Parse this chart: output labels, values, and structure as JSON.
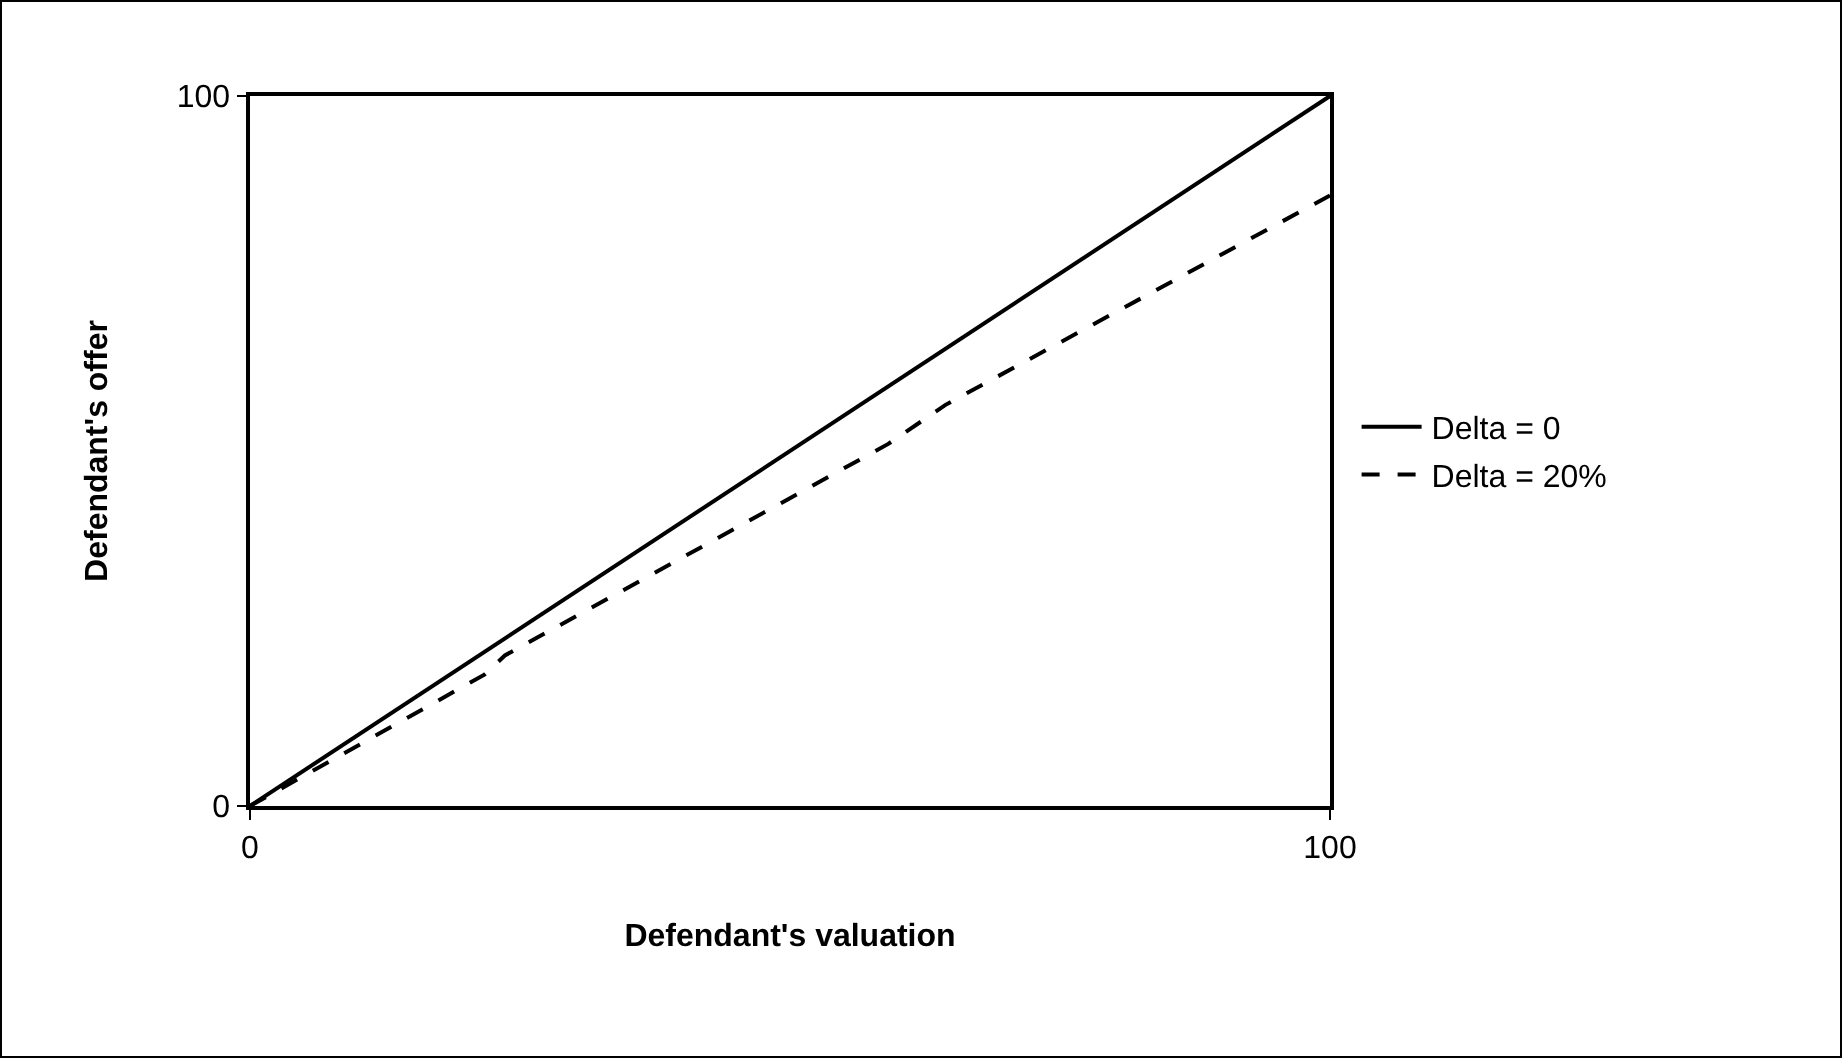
{
  "chart_data": {
    "type": "line",
    "xlabel": "Defendant's valuation",
    "ylabel": "Defendant's offer",
    "xlim": [
      0,
      100
    ],
    "ylim": [
      0,
      100
    ],
    "xticks": [
      0,
      100
    ],
    "yticks": [
      0,
      100
    ],
    "legend": "right",
    "marker": "none",
    "series": [
      {
        "name": "Delta = 0",
        "color": "#000000",
        "line_style": "solid",
        "x": [
          0,
          100
        ],
        "values": [
          0,
          100
        ]
      },
      {
        "name": "Delta = 20%",
        "color": "#000000",
        "line_style": "dashed",
        "x": [
          0,
          21.7,
          23.6,
          59.1,
          64.4,
          100
        ],
        "values": [
          0,
          18.5,
          21.2,
          51,
          56.5,
          86
        ]
      }
    ]
  }
}
